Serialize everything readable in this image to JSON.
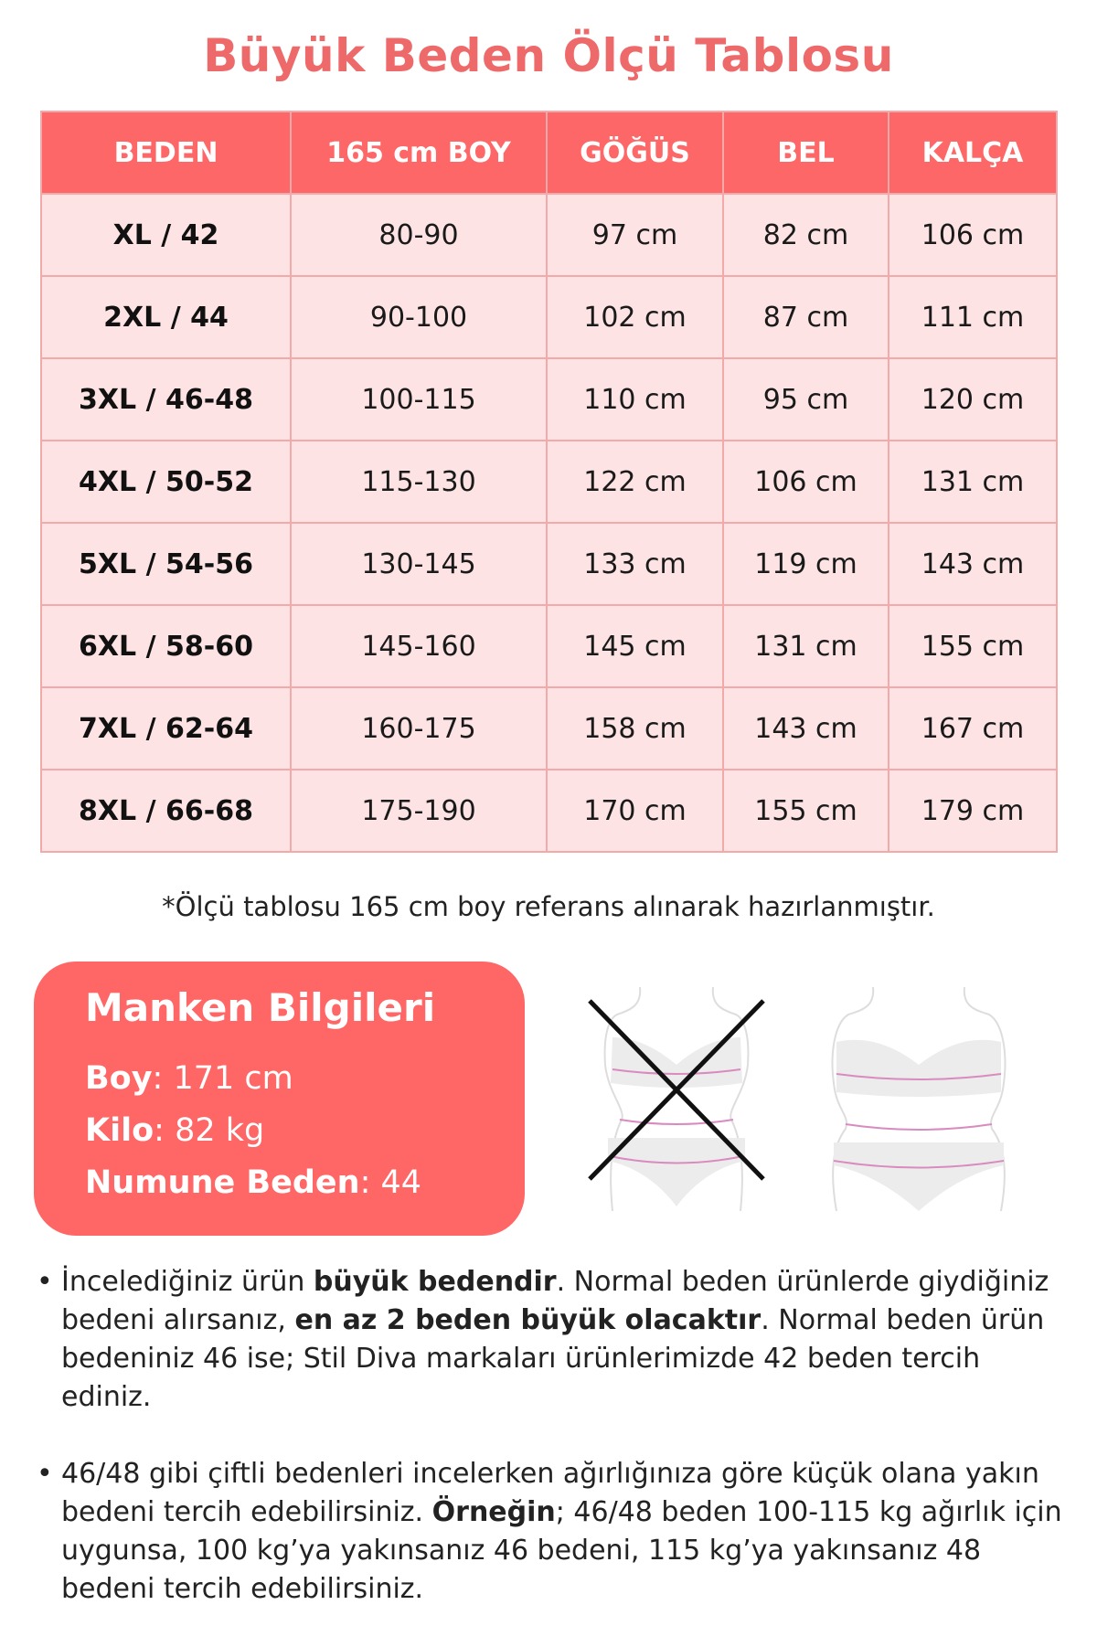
{
  "title": "Büyük Beden Ölçü Tablosu",
  "colors": {
    "accent": "#fe6767",
    "title": "#ee6a6a",
    "cell_bg": "#fde3e3",
    "border": "#f2a9a9",
    "box": "#ff6666"
  },
  "table": {
    "headers": [
      "BEDEN",
      "165 cm BOY",
      "GÖĞÜS",
      "BEL",
      "KALÇA"
    ],
    "rows": [
      [
        "XL / 42",
        "80-90",
        "97 cm",
        "82 cm",
        "106 cm"
      ],
      [
        "2XL / 44",
        "90-100",
        "102 cm",
        "87 cm",
        "111 cm"
      ],
      [
        "3XL / 46-48",
        "100-115",
        "110 cm",
        "95 cm",
        "120 cm"
      ],
      [
        "4XL / 50-52",
        "115-130",
        "122 cm",
        "106 cm",
        "131 cm"
      ],
      [
        "5XL / 54-56",
        "130-145",
        "133 cm",
        "119 cm",
        "143 cm"
      ],
      [
        "6XL / 58-60",
        "145-160",
        "145 cm",
        "131 cm",
        "155 cm"
      ],
      [
        "7XL / 62-64",
        "160-175",
        "158 cm",
        "143 cm",
        "167 cm"
      ],
      [
        "8XL / 66-68",
        "175-190",
        "170 cm",
        "155 cm",
        "179 cm"
      ]
    ]
  },
  "note": "*Ölçü tablosu 165 cm boy referans alınarak hazırlanmıştır.",
  "manken": {
    "title": "Manken Bilgileri",
    "items": [
      {
        "label": "Boy",
        "sep": ": ",
        "value": "171 cm"
      },
      {
        "label": "Kilo",
        "sep": ": ",
        "value": "82 kg"
      },
      {
        "label": "Numune Beden",
        "sep": ": ",
        "value": "44"
      }
    ]
  },
  "figures": {
    "wrong": "body-measure-wrong-icon",
    "right": "body-measure-correct-icon"
  },
  "bullets": [
    {
      "parts": [
        {
          "t": "İncelediğiniz ürün ",
          "b": false
        },
        {
          "t": "büyük bedendir",
          "b": true
        },
        {
          "t": ". Normal beden ürünlerde giydiğiniz bedeni alırsanız, ",
          "b": false
        },
        {
          "t": "en az 2 beden büyük olacaktır",
          "b": true
        },
        {
          "t": ". Normal beden ürün bedeniniz 46 ise; Stil Diva markaları ürünlerimizde 42 beden tercih ediniz.",
          "b": false
        }
      ]
    },
    {
      "parts": [
        {
          "t": "46/48 gibi çiftli bedenleri incelerken ağırlığınıza göre küçük olana yakın bedeni tercih edebilirsiniz. ",
          "b": false
        },
        {
          "t": "Örneğin",
          "b": true
        },
        {
          "t": "; 46/48 beden 100-115 kg ağırlık için uygunsa, 100 kg’ya yakınsanız 46 bedeni, 115 kg’ya yakınsanız 48 bedeni tercih edebilirsiniz.",
          "b": false
        }
      ]
    }
  ]
}
